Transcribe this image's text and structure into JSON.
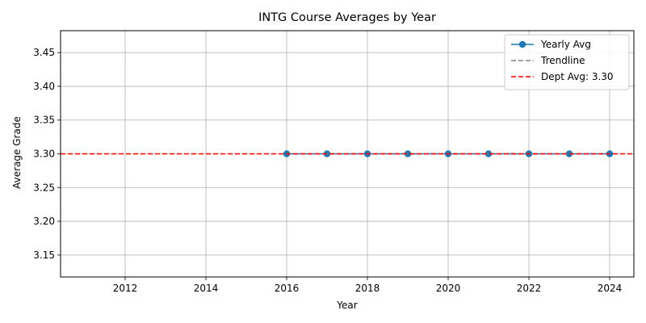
{
  "chart_data": {
    "type": "line",
    "title": "INTG Course Averages by Year",
    "xlabel": "Year",
    "ylabel": "Average Grade",
    "xlim": [
      2010.4,
      2024.6
    ],
    "ylim": [
      3.1175,
      3.4825
    ],
    "x_ticks": [
      2012,
      2014,
      2016,
      2018,
      2020,
      2022,
      2024
    ],
    "y_ticks": [
      3.15,
      3.2,
      3.25,
      3.3,
      3.35,
      3.4,
      3.45
    ],
    "grid": true,
    "legend_position": "upper right",
    "series": [
      {
        "name": "Yearly Avg",
        "style": "solid line with circle markers",
        "color": "#1f77b4",
        "x": [
          2016,
          2017,
          2018,
          2019,
          2020,
          2021,
          2022,
          2023,
          2024
        ],
        "y": [
          3.3,
          3.3,
          3.3,
          3.3,
          3.3,
          3.3,
          3.3,
          3.3,
          3.3
        ]
      },
      {
        "name": "Trendline",
        "style": "dashed",
        "color": "#808080",
        "x": [
          2016,
          2024
        ],
        "y": [
          3.3,
          3.3
        ]
      },
      {
        "name": "Dept Avg: 3.30",
        "style": "dashed horizontal line",
        "color": "#ff0000",
        "y": 3.3
      }
    ]
  }
}
